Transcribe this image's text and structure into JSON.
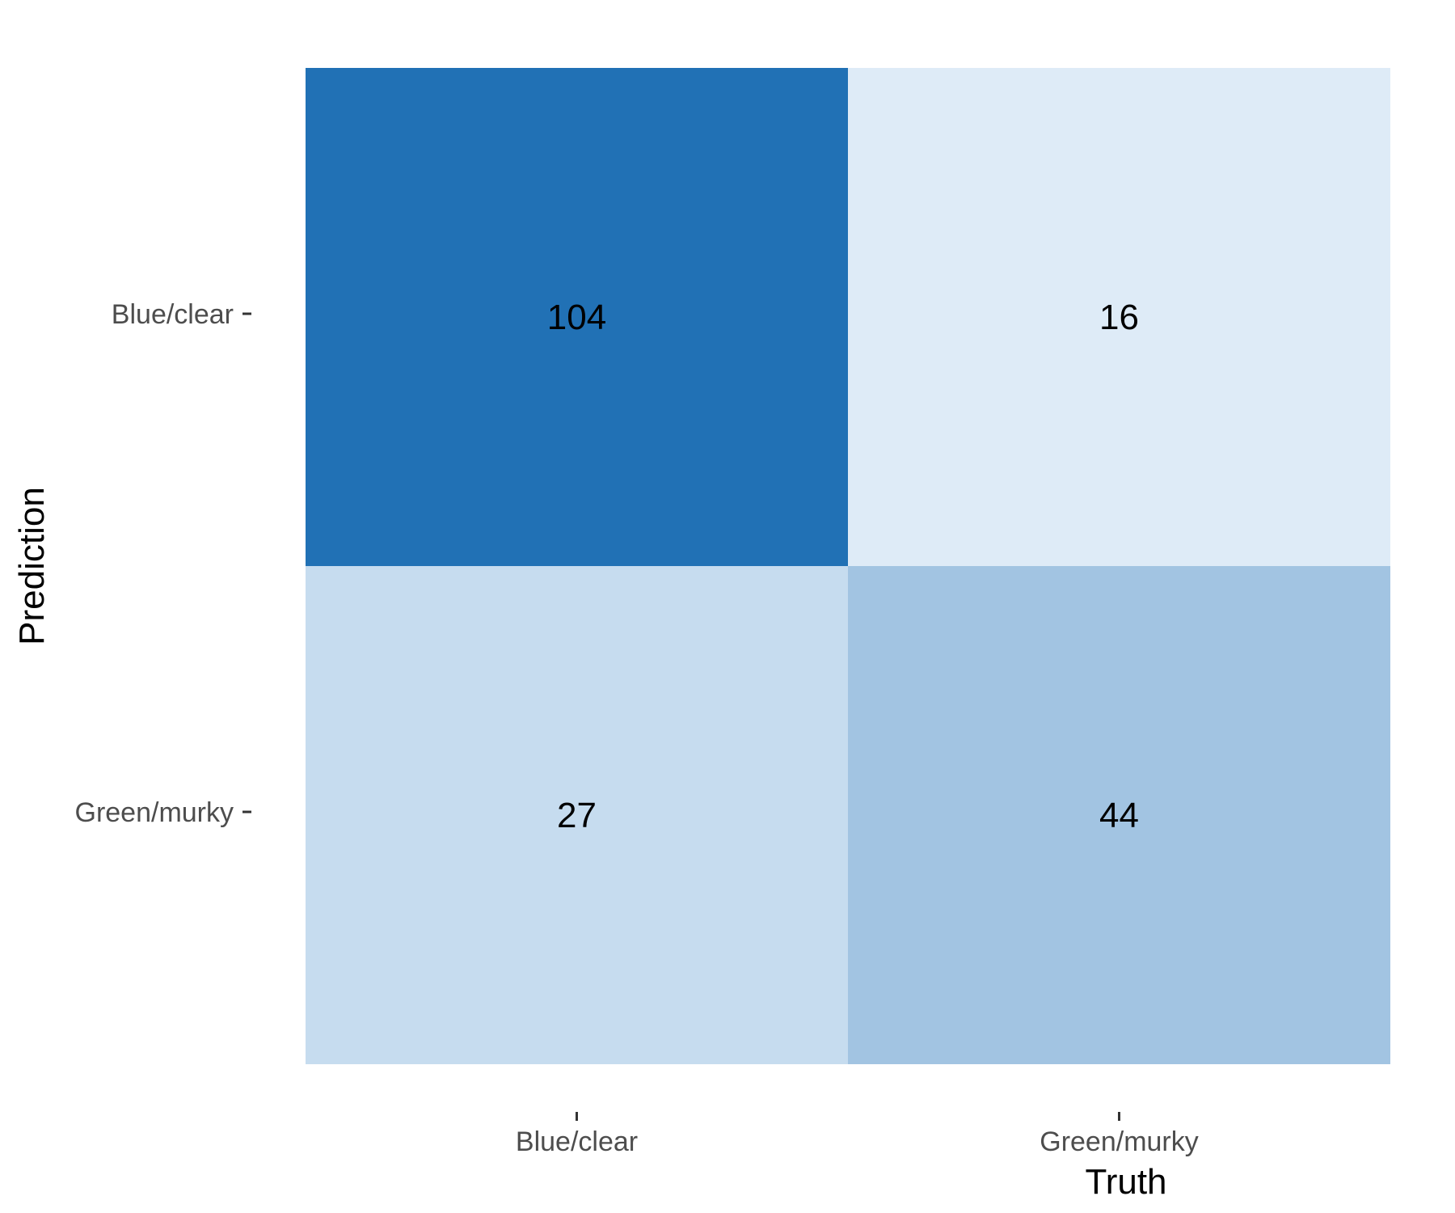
{
  "chart_data": {
    "type": "heatmap",
    "title": "",
    "xlabel": "Truth",
    "ylabel": "Prediction",
    "x_categories": [
      "Blue/clear",
      "Green/murky"
    ],
    "y_categories": [
      "Blue/clear",
      "Green/murky"
    ],
    "cells": [
      {
        "truth": "Blue/clear",
        "prediction": "Blue/clear",
        "value": 104
      },
      {
        "truth": "Green/murky",
        "prediction": "Blue/clear",
        "value": 16
      },
      {
        "truth": "Blue/clear",
        "prediction": "Green/murky",
        "value": 27
      },
      {
        "truth": "Green/murky",
        "prediction": "Green/murky",
        "value": 44
      }
    ],
    "color_scale": {
      "low": "#deebf7",
      "high": "#2171b5"
    },
    "grid": false,
    "legend": "none"
  }
}
